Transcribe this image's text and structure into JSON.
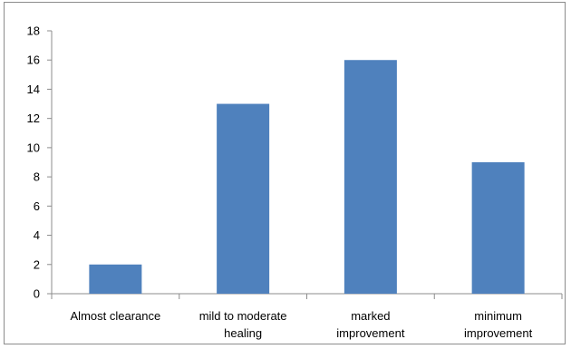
{
  "chart_data": {
    "type": "bar",
    "title": "",
    "xlabel": "",
    "ylabel": "",
    "categories": [
      [
        "Almost clearance"
      ],
      [
        "mild to moderate",
        "healing"
      ],
      [
        "marked",
        "improvement"
      ],
      [
        "minimum",
        "improvement"
      ]
    ],
    "values": [
      2,
      13,
      16,
      9
    ],
    "ylim": [
      0,
      18
    ],
    "ytick_step": 2,
    "grid": false,
    "legend": "none",
    "bar_color": "#4f81bd",
    "axis_color": "#8c8c8c"
  }
}
